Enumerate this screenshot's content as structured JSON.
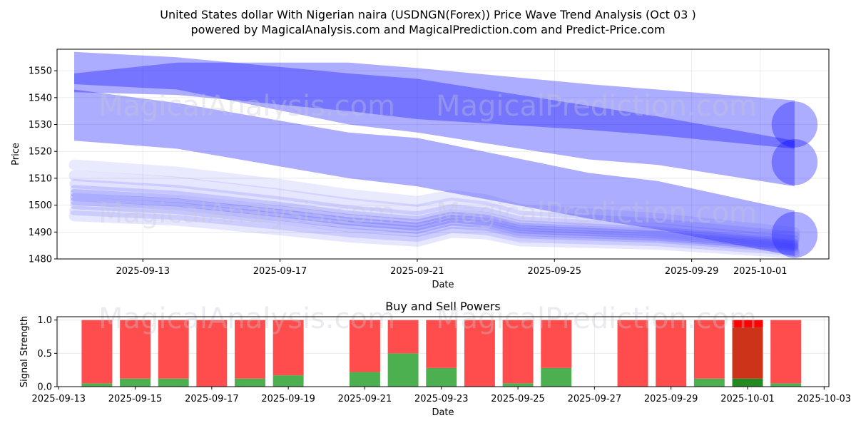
{
  "figure": {
    "title": "United States dollar With Nigerian naira (USDNGN(Forex)) Price Wave Trend Analysis (Oct 03 )",
    "subtitle": "powered by MagicalAnalysis.com and MagicalPrediction.com and Predict-Price.com",
    "watermarks": [
      "MagicalAnalysis.com",
      "MagicalPrediction.com"
    ]
  },
  "chart_data": [
    {
      "type": "area",
      "title": "",
      "xlabel": "Date",
      "ylabel": "Price",
      "x_range": [
        "2025-09-10T12:00",
        "2025-10-03T00:00"
      ],
      "ylim": [
        1480,
        1558
      ],
      "y_ticks": [
        1480,
        1490,
        1500,
        1510,
        1520,
        1530,
        1540,
        1550
      ],
      "x_ticks": [
        "2025-09-13",
        "2025-09-17",
        "2025-09-21",
        "2025-09-25",
        "2025-09-29",
        "2025-10-01"
      ],
      "grid": true,
      "colors": {
        "band": "#0000ff",
        "cluster": "#3333ff"
      },
      "bands": [
        {
          "name": "wave-1",
          "opacity": 0.32,
          "x": [
            "2025-09-11",
            "2025-09-14",
            "2025-09-19",
            "2025-09-21",
            "2025-09-26",
            "2025-09-28",
            "2025-10-02"
          ],
          "upper": [
            1557,
            1555,
            1549,
            1547,
            1537,
            1533,
            1524
          ],
          "lower": [
            1542,
            1541,
            1535,
            1532,
            1528,
            1526,
            1521
          ]
        },
        {
          "name": "wave-2",
          "opacity": 0.32,
          "x": [
            "2025-09-11",
            "2025-09-14",
            "2025-09-19",
            "2025-09-21",
            "2025-09-26",
            "2025-09-28",
            "2025-10-02"
          ],
          "upper": [
            1549,
            1553,
            1553,
            1551,
            1545,
            1543,
            1539
          ],
          "lower": [
            1545,
            1543,
            1530,
            1527,
            1517,
            1515,
            1507
          ]
        },
        {
          "name": "wave-3",
          "opacity": 0.32,
          "x": [
            "2025-09-11",
            "2025-09-14",
            "2025-09-19",
            "2025-09-21",
            "2025-09-26",
            "2025-09-28",
            "2025-10-02"
          ],
          "upper": [
            1543,
            1538,
            1527,
            1525,
            1512,
            1509,
            1498
          ],
          "lower": [
            1524,
            1521,
            1510,
            1507,
            1495,
            1491,
            1481
          ]
        }
      ],
      "band_end_caps": [
        {
          "x": "2025-10-02",
          "y": 1530,
          "radius": 9
        },
        {
          "x": "2025-10-02",
          "y": 1516,
          "radius": 9
        },
        {
          "x": "2025-10-02",
          "y": 1489,
          "radius": 9
        }
      ],
      "cluster": {
        "x": [
          "2025-09-11",
          "2025-09-14",
          "2025-09-17",
          "2025-09-19",
          "2025-09-21",
          "2025-09-22",
          "2025-09-23",
          "2025-09-24",
          "2025-09-26",
          "2025-09-28",
          "2025-09-30",
          "2025-10-02"
        ],
        "center": [
          1503,
          1501,
          1497,
          1494,
          1492,
          1495,
          1494,
          1491,
          1490,
          1489,
          1487,
          1485
        ],
        "traces": [
          {
            "offset": 12,
            "width": 4,
            "opacity": 0.1
          },
          {
            "offset": 8,
            "width": 4,
            "opacity": 0.12
          },
          {
            "offset": 5,
            "width": 3.5,
            "opacity": 0.14
          },
          {
            "offset": 3,
            "width": 3,
            "opacity": 0.16
          },
          {
            "offset": 1.5,
            "width": 3,
            "opacity": 0.2
          },
          {
            "offset": 0,
            "width": 3,
            "opacity": 0.25
          },
          {
            "offset": -1.5,
            "width": 3,
            "opacity": 0.2
          },
          {
            "offset": -3,
            "width": 3,
            "opacity": 0.16
          },
          {
            "offset": -5,
            "width": 3.5,
            "opacity": 0.14
          },
          {
            "offset": -7,
            "width": 4,
            "opacity": 0.12
          }
        ]
      }
    },
    {
      "type": "bar",
      "title": "Buy and Sell Powers",
      "xlabel": "Date",
      "ylabel": "Signal Strength",
      "x_range": [
        "2025-09-12T23:00",
        "2025-10-03T03:00"
      ],
      "ylim": [
        0,
        1.05
      ],
      "y_ticks": [
        0.0,
        0.5,
        1.0
      ],
      "x_ticks": [
        "2025-09-13",
        "2025-09-15",
        "2025-09-17",
        "2025-09-19",
        "2025-09-21",
        "2025-09-23",
        "2025-09-25",
        "2025-09-27",
        "2025-09-29",
        "2025-10-01",
        "2025-10-03"
      ],
      "grid": true,
      "colors": {
        "buy": "#4caf50",
        "sell": "#ff4d4d",
        "buy_highlight": "#228b22",
        "sell_highlight": "#cc3319",
        "highlight_top": "#ff0000"
      },
      "categories": [
        "2025-09-14",
        "2025-09-15",
        "2025-09-16",
        "2025-09-17",
        "2025-09-18",
        "2025-09-19",
        "2025-09-21",
        "2025-09-22",
        "2025-09-23",
        "2025-09-24",
        "2025-09-25",
        "2025-09-26",
        "2025-09-28",
        "2025-09-29",
        "2025-09-30",
        "2025-10-01",
        "2025-10-02"
      ],
      "series": [
        {
          "name": "Buy",
          "values": [
            0.05,
            0.12,
            0.12,
            0.0,
            0.12,
            0.17,
            0.22,
            0.5,
            0.28,
            0.0,
            0.05,
            0.28,
            0.0,
            0.0,
            0.12,
            0.12,
            0.05
          ]
        },
        {
          "name": "Sell",
          "values": [
            0.95,
            0.88,
            0.88,
            1.0,
            0.88,
            0.83,
            0.78,
            0.5,
            0.72,
            1.0,
            0.95,
            0.72,
            1.0,
            1.0,
            0.88,
            0.88,
            0.95
          ]
        }
      ],
      "highlighted": [
        "2025-10-01"
      ]
    }
  ]
}
